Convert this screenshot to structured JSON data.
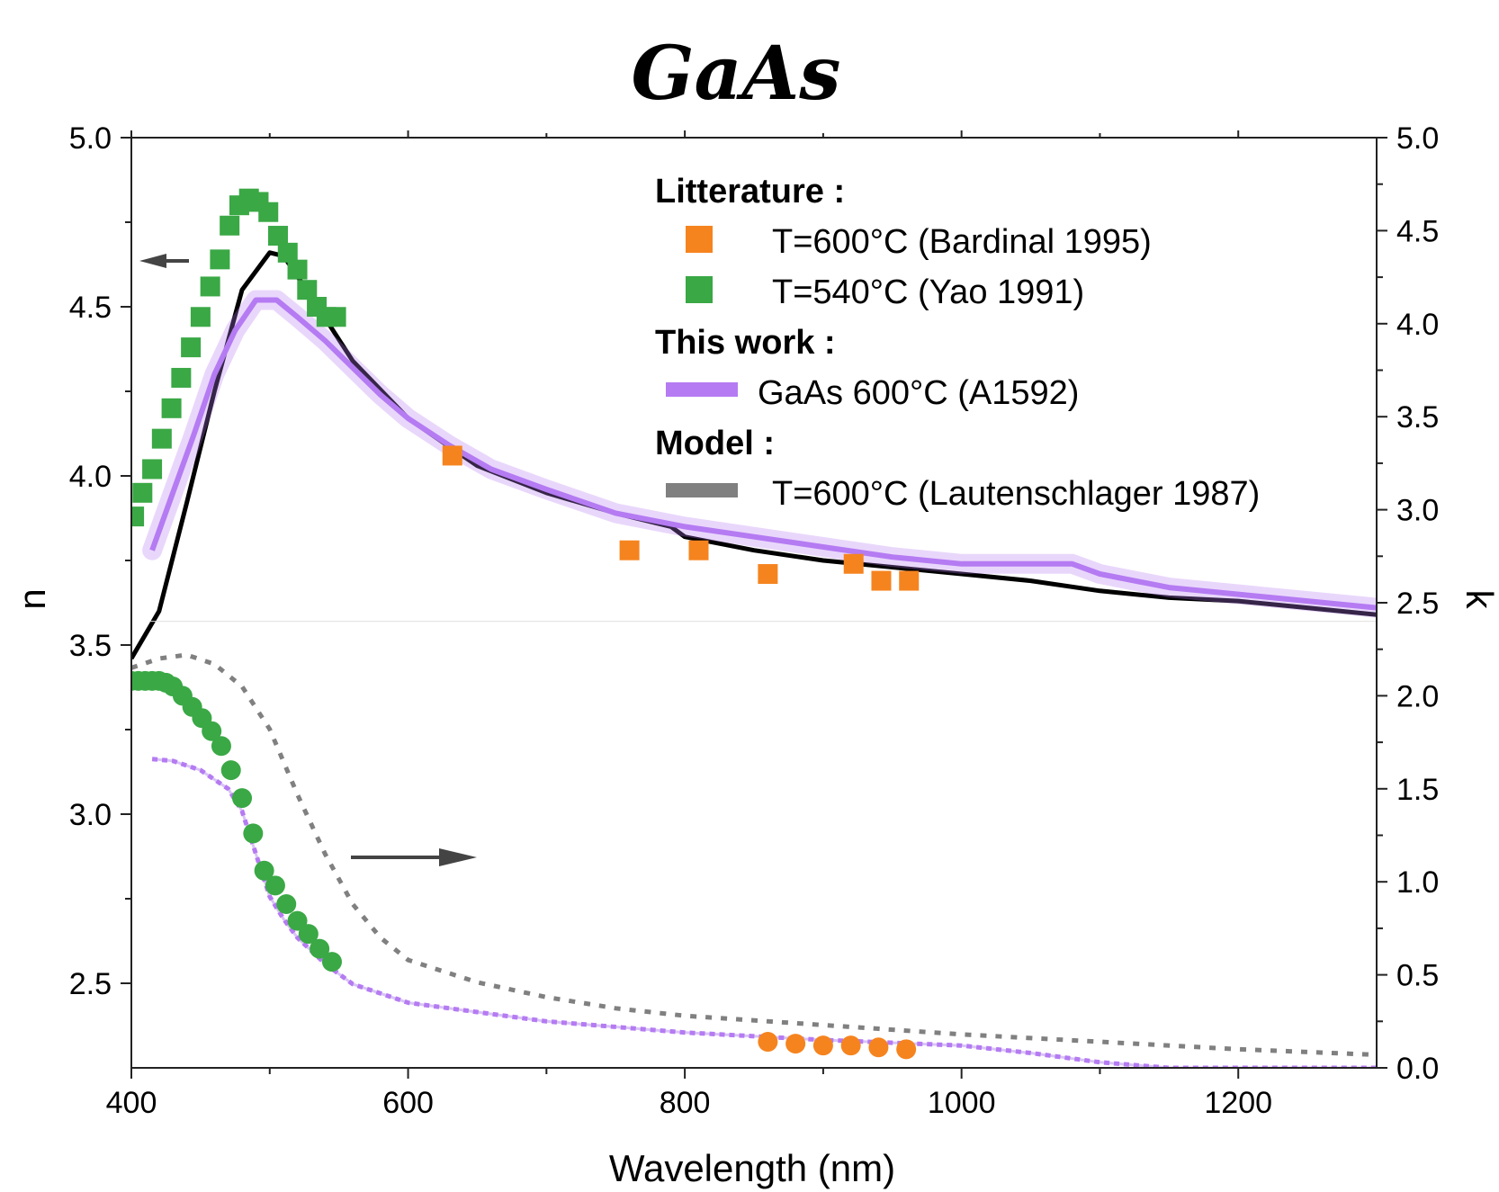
{
  "chart_data": {
    "type": "line",
    "title": "GaAs",
    "xlabel": "Wavelength (nm)",
    "ylabel_left": "n",
    "ylabel_right": "k",
    "xlim": [
      400,
      1300
    ],
    "ylim_left": [
      2.25,
      5.0
    ],
    "ylim_right": [
      0.0,
      5.0
    ],
    "x_ticks": [
      "400",
      "600",
      "800",
      "1000",
      "1200"
    ],
    "y_left_ticks": [
      "2.5",
      "3.0",
      "3.5",
      "4.0",
      "4.5",
      "5.0"
    ],
    "y_right_ticks": [
      "0.0",
      "0.5",
      "1.0",
      "1.5",
      "2.0",
      "2.5",
      "3.0",
      "3.5",
      "4.0",
      "4.5",
      "5.0"
    ],
    "legend": {
      "groups": [
        {
          "heading": "Litterature :",
          "entries": [
            {
              "label": "T=600°C  (Bardinal 1995)",
              "color": "#f5841f",
              "marker": "square"
            },
            {
              "label": "T=540°C (Yao 1991)",
              "color": "#3aa845",
              "marker": "square"
            }
          ]
        },
        {
          "heading": "This work :",
          "entries": [
            {
              "label": "GaAs 600°C (A1592)",
              "color": "#b57bf2",
              "marker": "line"
            }
          ]
        },
        {
          "heading": "Model :",
          "entries": [
            {
              "label": "T=600°C (Lautenschlager 1987)",
              "color": "#808080",
              "marker": "line"
            }
          ]
        }
      ]
    },
    "series": [
      {
        "name": "T=600°C  (Bardinal 1995)",
        "quantity": "n",
        "axis": "left",
        "color": "#f5841f",
        "x": [
          632,
          760,
          810,
          860,
          922,
          942,
          962
        ],
        "y": [
          4.06,
          3.78,
          3.78,
          3.71,
          3.74,
          3.69,
          3.69
        ]
      },
      {
        "name": "T=540°C (Yao 1991)",
        "quantity": "n",
        "axis": "left",
        "color": "#3aa845",
        "x": [
          402,
          408,
          415,
          422,
          429,
          436,
          443,
          450,
          457,
          464,
          471,
          478,
          485,
          492,
          499,
          506,
          513,
          520,
          527,
          534,
          541,
          548
        ],
        "y": [
          3.88,
          3.95,
          4.02,
          4.11,
          4.2,
          4.29,
          4.38,
          4.47,
          4.56,
          4.64,
          4.74,
          4.8,
          4.82,
          4.81,
          4.78,
          4.71,
          4.66,
          4.61,
          4.55,
          4.5,
          4.47,
          4.47
        ]
      },
      {
        "name": "GaAs 600°C (A1592)",
        "quantity": "n",
        "axis": "left",
        "color": "#b57bf2",
        "x": [
          415,
          430,
          445,
          460,
          475,
          490,
          505,
          520,
          540,
          560,
          580,
          600,
          630,
          660,
          700,
          750,
          800,
          850,
          900,
          950,
          1000,
          1040,
          1080,
          1100,
          1150,
          1200,
          1250,
          1300
        ],
        "y": [
          3.78,
          3.95,
          4.12,
          4.3,
          4.43,
          4.52,
          4.52,
          4.47,
          4.4,
          4.32,
          4.24,
          4.17,
          4.09,
          4.02,
          3.96,
          3.89,
          3.85,
          3.82,
          3.79,
          3.76,
          3.74,
          3.74,
          3.74,
          3.71,
          3.67,
          3.65,
          3.63,
          3.61
        ]
      },
      {
        "name": "T=600°C (Lautenschlager 1987)",
        "quantity": "n",
        "axis": "left",
        "color": "#000000",
        "x": [
          400,
          420,
          440,
          460,
          480,
          500,
          510,
          530,
          560,
          600,
          650,
          700,
          750,
          790,
          800,
          850,
          900,
          950,
          1000,
          1050,
          1100,
          1150,
          1200,
          1250,
          1300
        ],
        "y": [
          3.46,
          3.6,
          3.92,
          4.25,
          4.55,
          4.66,
          4.65,
          4.53,
          4.34,
          4.17,
          4.03,
          3.95,
          3.89,
          3.85,
          3.82,
          3.78,
          3.75,
          3.73,
          3.71,
          3.69,
          3.66,
          3.64,
          3.63,
          3.61,
          3.59
        ]
      },
      {
        "name": "T=600°C  (Bardinal 1995)",
        "quantity": "k",
        "axis": "right",
        "color": "#f5841f",
        "x": [
          860,
          880,
          900,
          920,
          940,
          960
        ],
        "y": [
          0.14,
          0.13,
          0.12,
          0.12,
          0.11,
          0.1
        ]
      },
      {
        "name": "T=540°C (Yao 1991)",
        "quantity": "k",
        "axis": "right",
        "color": "#3aa845",
        "x": [
          400,
          405,
          410,
          415,
          420,
          425,
          430,
          437,
          444,
          451,
          458,
          465,
          472,
          480,
          488,
          496,
          504,
          512,
          520,
          528,
          536,
          545
        ],
        "y": [
          2.08,
          2.08,
          2.08,
          2.08,
          2.08,
          2.07,
          2.05,
          2.0,
          1.94,
          1.88,
          1.81,
          1.73,
          1.6,
          1.45,
          1.26,
          1.06,
          0.98,
          0.88,
          0.79,
          0.72,
          0.64,
          0.57
        ]
      },
      {
        "name": "GaAs 600°C (A1592)",
        "quantity": "k",
        "axis": "right",
        "color": "#b57bf2",
        "x": [
          415,
          430,
          450,
          470,
          480,
          490,
          500,
          510,
          520,
          540,
          560,
          600,
          650,
          700,
          800,
          900,
          1000,
          1050,
          1100,
          1150,
          1200,
          1300
        ],
        "y": [
          1.66,
          1.65,
          1.6,
          1.5,
          1.38,
          1.15,
          0.92,
          0.8,
          0.7,
          0.56,
          0.45,
          0.35,
          0.3,
          0.25,
          0.19,
          0.15,
          0.12,
          0.08,
          0.03,
          0.0,
          0.0,
          0.0
        ]
      },
      {
        "name": "T=600°C (Lautenschlager 1987)",
        "quantity": "k",
        "axis": "right",
        "color": "#808080",
        "x": [
          400,
          420,
          440,
          460,
          480,
          500,
          520,
          540,
          560,
          580,
          600,
          650,
          700,
          750,
          800,
          900,
          1000,
          1100,
          1200,
          1300
        ],
        "y": [
          2.15,
          2.2,
          2.22,
          2.17,
          2.05,
          1.82,
          1.47,
          1.15,
          0.88,
          0.7,
          0.58,
          0.46,
          0.38,
          0.32,
          0.28,
          0.23,
          0.18,
          0.14,
          0.1,
          0.07
        ]
      }
    ],
    "annotations": [
      {
        "type": "arrow",
        "direction": "left",
        "refers_to": "n axis"
      },
      {
        "type": "arrow",
        "direction": "right",
        "refers_to": "k axis"
      }
    ],
    "grid": false,
    "legend_position": "top-right"
  }
}
